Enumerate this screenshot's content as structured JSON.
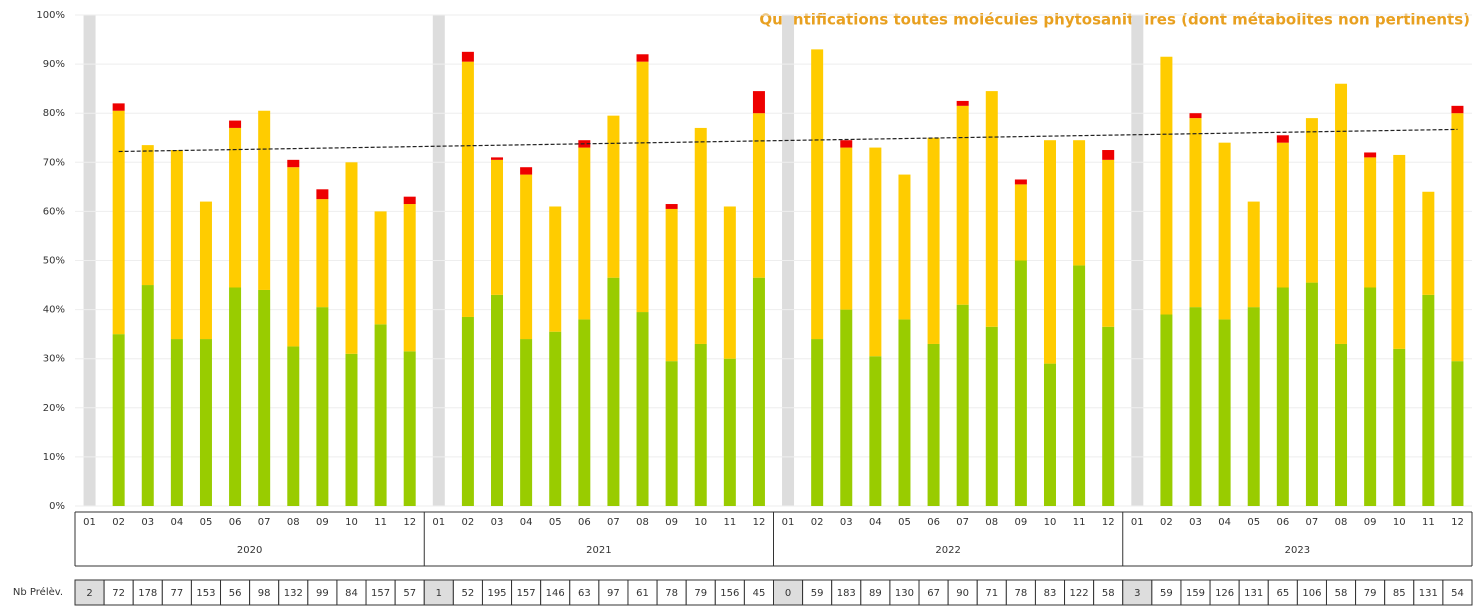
{
  "chart_data": {
    "type": "bar",
    "stacked": true,
    "title": "Quantifications toutes molécules phytosanitaires (dont métabolites non pertinents)",
    "categories": [
      "01",
      "02",
      "03",
      "04",
      "05",
      "06",
      "07",
      "08",
      "09",
      "10",
      "11",
      "12",
      "01",
      "02",
      "03",
      "04",
      "05",
      "06",
      "07",
      "08",
      "09",
      "10",
      "11",
      "12",
      "01",
      "02",
      "03",
      "04",
      "05",
      "06",
      "07",
      "08",
      "09",
      "10",
      "11",
      "12",
      "01",
      "02",
      "03",
      "04",
      "05",
      "06",
      "07",
      "08",
      "09",
      "10",
      "11",
      "12"
    ],
    "years": [
      "2020",
      "2021",
      "2022",
      "2023"
    ],
    "series": [
      {
        "name": "green",
        "color": "#99cc00",
        "values": [
          null,
          35,
          45,
          34,
          34,
          44.5,
          44,
          32.5,
          40.5,
          31,
          37,
          31.5,
          null,
          38.5,
          43,
          34,
          35.5,
          38,
          46.5,
          39.5,
          29.5,
          33,
          30,
          46.5,
          null,
          34,
          40,
          30.5,
          38,
          33,
          41,
          36.5,
          50,
          29,
          49,
          36.5,
          null,
          39,
          40.5,
          38,
          40.5,
          44.5,
          45.5,
          33,
          44.5,
          32,
          43,
          29.5
        ]
      },
      {
        "name": "yellow",
        "color": "#ffcc00",
        "values": [
          null,
          45.5,
          28.5,
          38.5,
          28,
          32.5,
          36.5,
          36.5,
          22,
          39,
          23,
          30,
          null,
          52,
          27.5,
          33.5,
          25.5,
          35,
          33,
          51,
          31,
          44,
          31,
          33.5,
          null,
          59,
          33,
          42.5,
          29.5,
          42,
          40.5,
          48,
          15.5,
          45.5,
          25.5,
          34,
          null,
          52.5,
          38.5,
          36,
          21.5,
          29.5,
          33.5,
          53,
          26.5,
          39.5,
          21,
          50.5
        ]
      },
      {
        "name": "red",
        "color": "#ee0000",
        "values": [
          null,
          1.5,
          0,
          0,
          0,
          1.5,
          0,
          1.5,
          2,
          0,
          0,
          1.5,
          null,
          2,
          0.5,
          1.5,
          0,
          1.5,
          0,
          1.5,
          1,
          0,
          0,
          4.5,
          null,
          0,
          1.5,
          0,
          0,
          0,
          1,
          0,
          1,
          0,
          0,
          2,
          null,
          0,
          1,
          0,
          0,
          1.5,
          0,
          0,
          1,
          0,
          0,
          1.5
        ]
      }
    ],
    "trend": {
      "start": 72.2,
      "end": 76.7
    },
    "samples_label": "Nb Prélèv.",
    "samples": [
      2,
      72,
      178,
      77,
      153,
      56,
      98,
      132,
      99,
      84,
      157,
      57,
      1,
      52,
      195,
      157,
      146,
      63,
      97,
      61,
      78,
      79,
      156,
      45,
      0,
      59,
      183,
      89,
      130,
      67,
      90,
      71,
      78,
      83,
      122,
      58,
      3,
      59,
      159,
      126,
      131,
      65,
      106,
      58,
      79,
      85,
      131,
      54
    ],
    "ylim": [
      0,
      100
    ],
    "yticks": [
      {
        "value": 0,
        "label": "0%"
      },
      {
        "value": 10,
        "label": "10%"
      },
      {
        "value": 20,
        "label": "20%"
      },
      {
        "value": 30,
        "label": "30%"
      },
      {
        "value": 40,
        "label": "40%"
      },
      {
        "value": 50,
        "label": "50%"
      },
      {
        "value": 60,
        "label": "60%"
      },
      {
        "value": 70,
        "label": "70%"
      },
      {
        "value": 80,
        "label": "80%"
      },
      {
        "value": 90,
        "label": "90%"
      },
      {
        "value": 100,
        "label": "100%"
      }
    ],
    "grid": true
  }
}
